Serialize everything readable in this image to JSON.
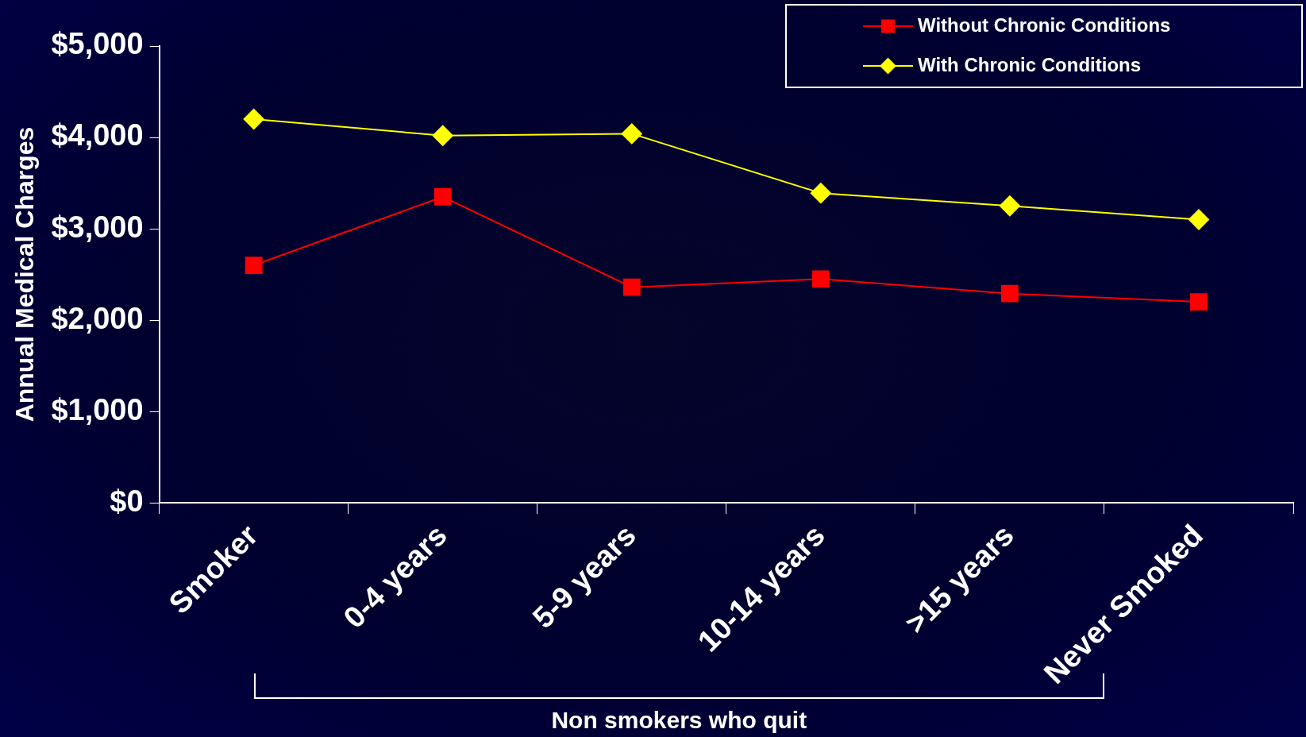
{
  "chart_data": {
    "type": "line",
    "ylabel": "Annual Medical Charges",
    "categories": [
      "Smoker",
      "0-4 years",
      "5-9 years",
      "10-14 years",
      ">15 years",
      "Never Smoked"
    ],
    "series": [
      {
        "name": "Without Chronic Conditions",
        "color": "#ff0000",
        "marker": "square",
        "values": [
          2600,
          3350,
          2360,
          2450,
          2290,
          2200
        ]
      },
      {
        "name": "With Chronic Conditions",
        "color": "#ffff00",
        "marker": "diamond",
        "values": [
          4200,
          4020,
          4040,
          3390,
          3250,
          3100
        ]
      }
    ],
    "ylim": [
      0,
      5000
    ],
    "yticks": [
      {
        "value": 0,
        "label": "$0"
      },
      {
        "value": 1000,
        "label": "$1,000"
      },
      {
        "value": 2000,
        "label": "$2,000"
      },
      {
        "value": 3000,
        "label": "$3,000"
      },
      {
        "value": 4000,
        "label": "$4,000"
      },
      {
        "value": 5000,
        "label": "$5,000"
      }
    ],
    "grid": false,
    "legend": "top right",
    "line_style": "solid",
    "annotations": [
      "Non smokers who quit"
    ]
  }
}
